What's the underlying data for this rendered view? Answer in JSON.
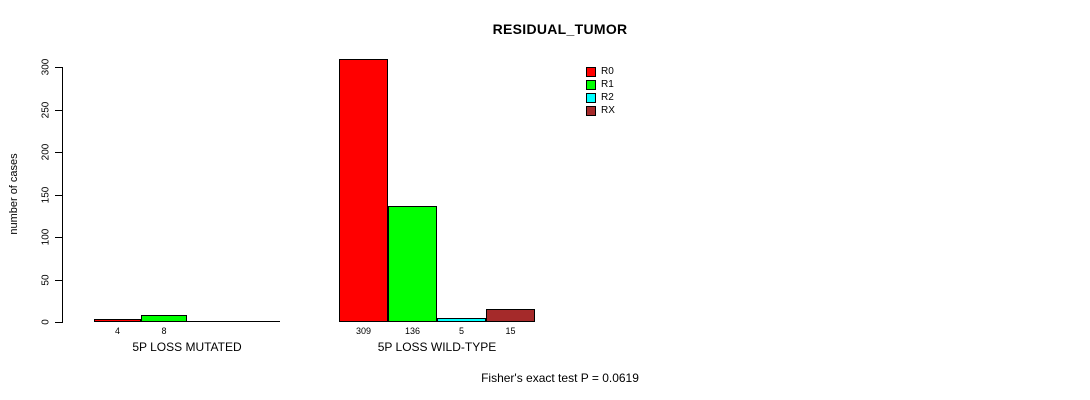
{
  "chart_data": {
    "type": "bar",
    "title": "RESIDUAL_TUMOR",
    "ylabel": "number of cases",
    "xlabel": "",
    "categories": [
      "5P LOSS MUTATED",
      "5P LOSS WILD-TYPE"
    ],
    "series": [
      {
        "name": "R0",
        "color": "#ff0000",
        "values": [
          4,
          309
        ]
      },
      {
        "name": "R1",
        "color": "#00ff00",
        "values": [
          8,
          136
        ]
      },
      {
        "name": "R2",
        "color": "#00ffff",
        "values": [
          0,
          5
        ]
      },
      {
        "name": "RX",
        "color": "#a52a2a",
        "values": [
          0,
          15
        ]
      }
    ],
    "yticks": [
      0,
      50,
      100,
      150,
      200,
      250,
      300
    ],
    "ylim": [
      0,
      320
    ],
    "grid": false,
    "legend_position": "top-right",
    "legend_entries": [
      "R0",
      "R1",
      "R2",
      "RX"
    ],
    "bar_value_labels_shown_only_when_nonzero": true,
    "annotation": "Fisher's exact test P = 0.0619"
  }
}
